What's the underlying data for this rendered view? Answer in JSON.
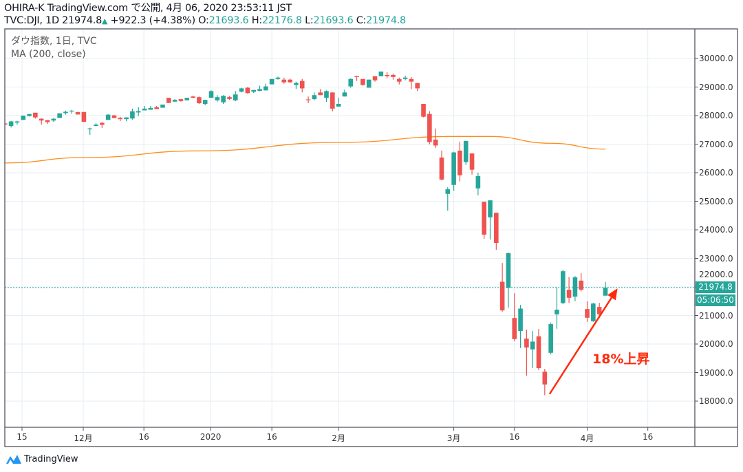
{
  "header": {
    "publish_line": "OHIRA-K TradingView.com で公開, 4月 06, 2020 23:53:11 JST",
    "symbol": "TVC:DJI, 1D",
    "last": "21974.8",
    "change": "+922.3 (+4.38%)",
    "o_label": "O:",
    "o": "21693.6",
    "h_label": "H:",
    "h": "22176.8",
    "l_label": "L:",
    "l": "21693.6",
    "c_label": "C:",
    "c": "21974.8",
    "up_icon": "triangle-up-icon"
  },
  "legend": {
    "series": "ダウ指数, 1日, TVC",
    "indicator": "MA (200, close)"
  },
  "price_axis": {
    "current_price": "21974.8",
    "countdown": "05:06:50"
  },
  "annotation": {
    "text": "18%上昇",
    "color": "#ff2a0a"
  },
  "brand": {
    "name": "TradingView"
  },
  "colors": {
    "up": "#26a69a",
    "down": "#ef5350",
    "ma": "#ff8c1a",
    "grid": "#e6edf3"
  },
  "chart_data": {
    "type": "candlestick",
    "title": "ダウ指数, 1日, TVC",
    "ylim": [
      17200,
      30900
    ],
    "y_ticks": [
      "30000.0",
      "29000.0",
      "28000.0",
      "27000.0",
      "26000.0",
      "25000.0",
      "24000.0",
      "23000.0",
      "22000.0",
      "21000.0",
      "20000.0",
      "19000.0",
      "18000.0"
    ],
    "x_ticks": [
      {
        "label": "15",
        "bar": 2.8
      },
      {
        "label": "12月",
        "bar": 12.9
      },
      {
        "label": "16",
        "bar": 22.9
      },
      {
        "label": "2020",
        "bar": 33.9
      },
      {
        "label": "16",
        "bar": 44
      },
      {
        "label": "2月",
        "bar": 55
      },
      {
        "label": "3月",
        "bar": 74
      },
      {
        "label": "16",
        "bar": 84
      },
      {
        "label": "4月",
        "bar": 96
      },
      {
        "label": "16",
        "bar": 106
      }
    ],
    "ohlc_fields": [
      "open",
      "high",
      "low",
      "close"
    ],
    "ohlc": [
      [
        27724,
        27730,
        27680,
        27685
      ],
      [
        27638,
        27819,
        27583,
        27795
      ],
      [
        27756,
        27819,
        27685,
        27795
      ],
      [
        27850,
        28000,
        27850,
        28000
      ],
      [
        27984,
        28055,
        27968,
        28055
      ],
      [
        28102,
        28102,
        27898,
        27937
      ],
      [
        27890,
        27913,
        27685,
        27827
      ],
      [
        27843,
        27843,
        27709,
        27772
      ],
      [
        27827,
        27913,
        27780,
        27890
      ],
      [
        27921,
        28079,
        27921,
        28079
      ],
      [
        28087,
        28173,
        28032,
        28134
      ],
      [
        28150,
        28197,
        28063,
        28173
      ],
      [
        28126,
        28126,
        28039,
        28039
      ],
      [
        28126,
        28126,
        27780,
        27780
      ],
      [
        27535,
        27575,
        27323,
        27551
      ],
      [
        27638,
        27740,
        27614,
        27685
      ],
      [
        27748,
        27772,
        27567,
        27677
      ],
      [
        27850,
        28055,
        27850,
        28032
      ],
      [
        28008,
        28024,
        27913,
        27913
      ],
      [
        27921,
        27961,
        27803,
        27874
      ],
      [
        27874,
        27937,
        27803,
        27937
      ],
      [
        27898,
        28244,
        27858,
        28150
      ],
      [
        28110,
        28291,
        27984,
        28157
      ],
      [
        28181,
        28339,
        28181,
        28244
      ],
      [
        28205,
        28339,
        28205,
        28268
      ],
      [
        28291,
        28339,
        28228,
        28228
      ],
      [
        28276,
        28386,
        28276,
        28386
      ],
      [
        28622,
        28622,
        28441,
        28441
      ],
      [
        28488,
        28583,
        28488,
        28551
      ],
      [
        28575,
        28575,
        28488,
        28512
      ],
      [
        28535,
        28622,
        28535,
        28622
      ],
      [
        28669,
        28700,
        28606,
        28622
      ],
      [
        28646,
        28669,
        28409,
        28433
      ],
      [
        28409,
        28551,
        28362,
        28551
      ],
      [
        28622,
        28882,
        28622,
        28858
      ],
      [
        28535,
        28717,
        28488,
        28646
      ],
      [
        28465,
        28717,
        28409,
        28693
      ],
      [
        28646,
        28685,
        28551,
        28583
      ],
      [
        28535,
        28858,
        28504,
        28740
      ],
      [
        28835,
        28976,
        28811,
        28953
      ],
      [
        28976,
        29000,
        28764,
        28787
      ],
      [
        28835,
        28898,
        28795,
        28898
      ],
      [
        28866,
        29047,
        28850,
        28929
      ],
      [
        28882,
        29118,
        28882,
        29023
      ],
      [
        29094,
        29283,
        29094,
        29283
      ],
      [
        29283,
        29362,
        29260,
        29331
      ],
      [
        29260,
        29331,
        29118,
        29165
      ],
      [
        29260,
        29299,
        29142,
        29165
      ],
      [
        29071,
        29189,
        28929,
        29142
      ],
      [
        29213,
        29283,
        28811,
        28953
      ],
      [
        28567,
        28669,
        28433,
        28551
      ],
      [
        28575,
        28811,
        28543,
        28717
      ],
      [
        28811,
        28929,
        28717,
        28717
      ],
      [
        28622,
        28882,
        28480,
        28858
      ],
      [
        28811,
        28811,
        28150,
        28244
      ],
      [
        28315,
        28622,
        28315,
        28409
      ],
      [
        28669,
        28906,
        28669,
        28811
      ],
      [
        29023,
        29307,
        28976,
        29283
      ],
      [
        29378,
        29394,
        29213,
        29362
      ],
      [
        29283,
        29283,
        29047,
        29071
      ],
      [
        28976,
        29260,
        28976,
        29260
      ],
      [
        29378,
        29378,
        29189,
        29236
      ],
      [
        29378,
        29543,
        29378,
        29543
      ],
      [
        29425,
        29520,
        29307,
        29378
      ],
      [
        29425,
        29472,
        29260,
        29354
      ],
      [
        29283,
        29331,
        29094,
        29189
      ],
      [
        29283,
        29400,
        29236,
        29331
      ],
      [
        29283,
        29354,
        28929,
        29189
      ],
      [
        29142,
        29142,
        28858,
        28953
      ],
      [
        28409,
        28409,
        27937,
        27961
      ],
      [
        28056,
        28153,
        26992,
        27073
      ],
      [
        27161,
        27548,
        26871,
        26952
      ],
      [
        26532,
        26774,
        25734,
        25758
      ],
      [
        25258,
        25492,
        24669,
        25419
      ],
      [
        25572,
        26734,
        25371,
        26710
      ],
      [
        26774,
        27089,
        25693,
        25911
      ],
      [
        26371,
        27113,
        26274,
        27113
      ],
      [
        26677,
        26677,
        25935,
        26105
      ],
      [
        25451,
        26000,
        25210,
        25879
      ],
      [
        24984,
        24984,
        23685,
        23830
      ],
      [
        24435,
        25032,
        23661,
        25032
      ],
      [
        24597,
        24597,
        23298,
        23540
      ],
      [
        22181,
        22839,
        21137,
        21177
      ],
      [
        21964,
        23200,
        21274,
        23185
      ],
      [
        20912,
        21779,
        20093,
        20173
      ],
      [
        20455,
        21370,
        19860,
        21241
      ],
      [
        20189,
        20503,
        18897,
        19876
      ],
      [
        19812,
        20455,
        19162,
        20085
      ],
      [
        20270,
        20527,
        19089,
        19154
      ],
      [
        19033,
        19130,
        18206,
        18584
      ],
      [
        19692,
        20752,
        19635,
        20696
      ],
      [
        21041,
        21980,
        20535,
        21201
      ],
      [
        21434,
        22598,
        21402,
        22550
      ],
      [
        21900,
        22342,
        21442,
        21619
      ],
      [
        21659,
        22382,
        21498,
        22334
      ],
      [
        22221,
        22486,
        21844,
        21900
      ],
      [
        21225,
        21498,
        20776,
        20920
      ],
      [
        20800,
        21442,
        20776,
        21418
      ],
      [
        21298,
        21442,
        20920,
        21041
      ],
      [
        21693.6,
        22176.8,
        21693.6,
        21974.8
      ]
    ],
    "ma200": [
      {
        "bar": 0,
        "value": 26340
      },
      {
        "bar": 13,
        "value": 26530
      },
      {
        "bar": 32,
        "value": 26764
      },
      {
        "bar": 55,
        "value": 27060
      },
      {
        "bar": 74,
        "value": 27270
      },
      {
        "bar": 80,
        "value": 27270
      },
      {
        "bar": 90,
        "value": 27030
      },
      {
        "bar": 99,
        "value": 26827
      }
    ],
    "last_price": 21974.8,
    "arrow": {
      "from": {
        "bar": 89.8,
        "price": 18250
      },
      "to": {
        "bar": 101,
        "price": 21950
      }
    }
  }
}
